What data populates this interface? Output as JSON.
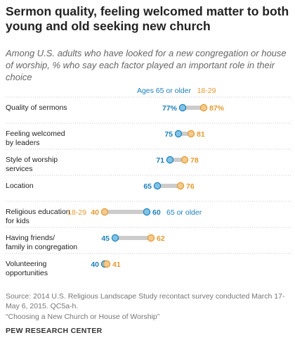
{
  "title": "Sermon quality, feeling welcomed matter to both young and old seeking new church",
  "subtitle": "Among U.S. adults who have looked for a new congregation or house of worship, % who say each factor played an important role in their choice",
  "colors": {
    "older": "#1d7fb8",
    "younger": "#e39a30",
    "older_fill": "#7fc3e8",
    "younger_fill": "#f3c98c",
    "connector": "#cccccc"
  },
  "chart_data": {
    "type": "dot",
    "categories": [
      [
        "Quality of sermons"
      ],
      [
        "Feeling welcomed",
        "by leaders"
      ],
      [
        "Style of worship",
        "services"
      ],
      [
        "Location"
      ],
      [
        "Religious education",
        "for kids"
      ],
      [
        "Having friends/",
        "family in congregation"
      ],
      [
        "Volunteering",
        "opportunities"
      ]
    ],
    "series": [
      {
        "name": "Ages 65 or older",
        "values": [
          77,
          75,
          71,
          65,
          60,
          45,
          40
        ]
      },
      {
        "name": "18-29",
        "values": [
          87,
          81,
          78,
          76,
          40,
          62,
          41
        ]
      }
    ],
    "value_labels": {
      "older": [
        "77%",
        "75",
        "71",
        "65",
        "60",
        "45",
        "40"
      ],
      "younger": [
        "87%",
        "81",
        "78",
        "76",
        "40",
        "62",
        "41"
      ]
    },
    "inline_labels": {
      "row": 4,
      "older": "65 or older",
      "younger": "18-29"
    },
    "xlim": [
      0,
      100
    ],
    "grid": false
  },
  "source": "Source: 2014 U.S. Religious Landscape Study recontact survey conducted March 17-May 6, 2015. QC5a-h.",
  "report": "“Choosing a New Church or House of Worship”",
  "footer": "PEW RESEARCH CENTER"
}
